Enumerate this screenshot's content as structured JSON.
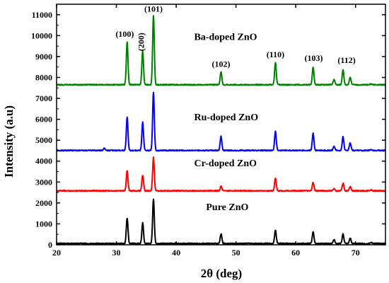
{
  "chart_data": {
    "type": "line",
    "title": "",
    "xlabel": "2θ (deg)",
    "ylabel": "Intensity (a.u)",
    "xlim": [
      20,
      75
    ],
    "ylim": [
      0,
      11500
    ],
    "x_ticks": [
      20,
      30,
      40,
      50,
      60,
      70
    ],
    "y_ticks": [
      0,
      1000,
      2000,
      3000,
      4000,
      5000,
      6000,
      7000,
      8000,
      9000,
      10000,
      11000
    ],
    "grid": false,
    "series": [
      {
        "name": "Pure ZnO",
        "color": "#000000",
        "baseline": 60,
        "label_at": [
          45,
          1650
        ],
        "peaks": [
          {
            "x": 31.8,
            "y": 1280
          },
          {
            "x": 34.4,
            "y": 1050
          },
          {
            "x": 36.2,
            "y": 2200
          },
          {
            "x": 47.5,
            "y": 520
          },
          {
            "x": 56.6,
            "y": 700
          },
          {
            "x": 62.9,
            "y": 620
          },
          {
            "x": 66.4,
            "y": 260
          },
          {
            "x": 67.9,
            "y": 520
          },
          {
            "x": 69.1,
            "y": 330
          },
          {
            "x": 72.6,
            "y": 120
          }
        ]
      },
      {
        "name": "Cr-doped ZnO",
        "color": "#ff0000",
        "baseline": 2580,
        "label_at": [
          43,
          3750
        ],
        "peaks": [
          {
            "x": 31.8,
            "y": 3530
          },
          {
            "x": 34.4,
            "y": 3330
          },
          {
            "x": 36.2,
            "y": 4170
          },
          {
            "x": 47.5,
            "y": 2800
          },
          {
            "x": 56.6,
            "y": 3180
          },
          {
            "x": 62.9,
            "y": 2980
          },
          {
            "x": 66.4,
            "y": 2680
          },
          {
            "x": 67.9,
            "y": 2950
          },
          {
            "x": 69.1,
            "y": 2780
          },
          {
            "x": 72.6,
            "y": 2630
          }
        ]
      },
      {
        "name": "Ru-doped ZnO",
        "color": "#0000ff",
        "baseline": 4510,
        "label_at": [
          43,
          5950
        ],
        "peaks": [
          {
            "x": 28.0,
            "y": 4620
          },
          {
            "x": 31.8,
            "y": 6100
          },
          {
            "x": 34.4,
            "y": 5850
          },
          {
            "x": 36.2,
            "y": 7300
          },
          {
            "x": 47.5,
            "y": 5180
          },
          {
            "x": 56.6,
            "y": 5420
          },
          {
            "x": 62.9,
            "y": 5330
          },
          {
            "x": 66.4,
            "y": 4720
          },
          {
            "x": 67.9,
            "y": 5160
          },
          {
            "x": 69.1,
            "y": 4880
          },
          {
            "x": 72.6,
            "y": 4560
          }
        ]
      },
      {
        "name": "Ba-doped ZnO",
        "color": "#008000",
        "baseline": 7650,
        "label_at": [
          43,
          9800
        ],
        "peaks": [
          {
            "x": 31.8,
            "y": 9700
          },
          {
            "x": 34.4,
            "y": 9250
          },
          {
            "x": 36.2,
            "y": 10950
          },
          {
            "x": 47.5,
            "y": 8250
          },
          {
            "x": 56.6,
            "y": 8700
          },
          {
            "x": 62.9,
            "y": 8500
          },
          {
            "x": 66.4,
            "y": 7900
          },
          {
            "x": 67.9,
            "y": 8350
          },
          {
            "x": 69.1,
            "y": 8000
          },
          {
            "x": 72.6,
            "y": 7700
          }
        ]
      }
    ],
    "annotations": [
      {
        "text": "(100)",
        "x": 31.4,
        "y": 9950,
        "rotate": false
      },
      {
        "text": "(200)",
        "x": 34.6,
        "y": 9700,
        "rotate": true
      },
      {
        "text": "(101)",
        "x": 36.2,
        "y": 11150,
        "rotate": false
      },
      {
        "text": "(102)",
        "x": 47.5,
        "y": 8500,
        "rotate": false
      },
      {
        "text": "(110)",
        "x": 56.6,
        "y": 8960,
        "rotate": false
      },
      {
        "text": "(103)",
        "x": 63.0,
        "y": 8800,
        "rotate": false
      },
      {
        "text": "(112)",
        "x": 68.5,
        "y": 8700,
        "rotate": false
      }
    ]
  }
}
